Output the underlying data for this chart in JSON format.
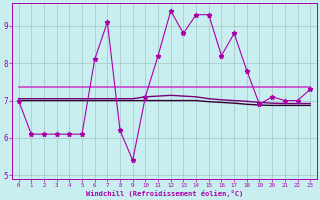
{
  "title": "",
  "xlabel": "Windchill (Refroidissement éolien,°C)",
  "bg_color": "#c8eef0",
  "line_color": "#aa00aa",
  "grid_color": "#aacccc",
  "x_values": [
    0,
    1,
    2,
    3,
    4,
    5,
    6,
    7,
    8,
    9,
    10,
    11,
    12,
    13,
    14,
    15,
    16,
    17,
    18,
    19,
    20,
    21,
    22,
    23
  ],
  "y_main": [
    7.0,
    6.1,
    6.1,
    6.1,
    6.1,
    6.1,
    8.1,
    9.1,
    6.2,
    5.4,
    7.1,
    8.2,
    9.4,
    8.8,
    9.3,
    9.3,
    8.2,
    8.8,
    7.8,
    6.9,
    7.1,
    7.0,
    7.0,
    7.3
  ],
  "y_ref1": [
    7.35,
    7.35,
    7.35,
    7.35,
    7.35,
    7.35,
    7.35,
    7.35,
    7.35,
    7.35,
    7.35,
    7.35,
    7.35,
    7.35,
    7.35,
    7.35,
    7.35,
    7.35,
    7.35,
    7.35,
    7.35,
    7.35,
    7.35,
    7.35
  ],
  "y_ref2": [
    7.05,
    7.05,
    7.05,
    7.05,
    7.05,
    7.05,
    7.05,
    7.05,
    7.05,
    7.05,
    7.1,
    7.12,
    7.14,
    7.12,
    7.1,
    7.05,
    7.02,
    7.0,
    6.98,
    6.95,
    6.93,
    6.92,
    6.92,
    6.92
  ],
  "y_ref3": [
    7.0,
    7.0,
    7.0,
    7.0,
    7.0,
    7.0,
    7.0,
    7.0,
    7.0,
    7.0,
    7.0,
    7.0,
    7.0,
    7.0,
    7.0,
    6.97,
    6.95,
    6.93,
    6.9,
    6.88,
    6.87,
    6.87,
    6.87,
    6.87
  ],
  "ylim": [
    4.9,
    9.6
  ],
  "xlim": [
    -0.5,
    23.5
  ],
  "yticks": [
    5,
    6,
    7,
    8,
    9
  ],
  "xticks": [
    0,
    1,
    2,
    3,
    4,
    5,
    6,
    7,
    8,
    9,
    10,
    11,
    12,
    13,
    14,
    15,
    16,
    17,
    18,
    19,
    20,
    21,
    22,
    23
  ]
}
